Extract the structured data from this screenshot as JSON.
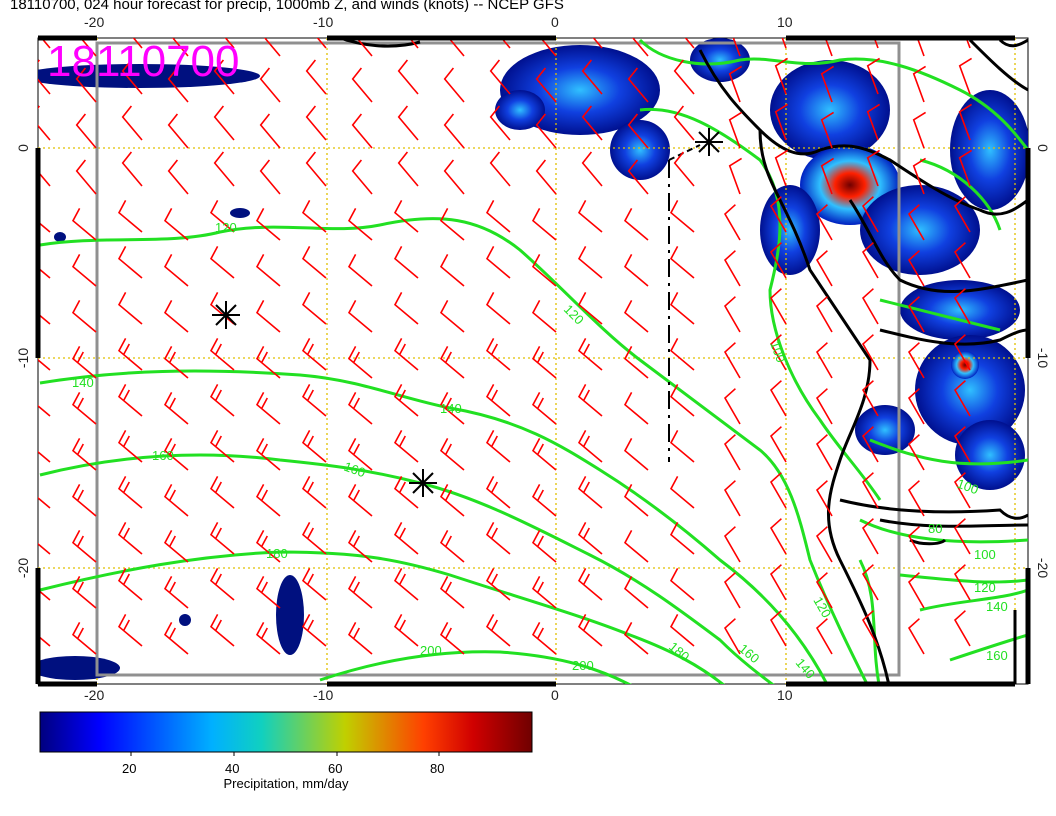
{
  "title": "18110700, 024 hour forecast for precip, 1000mb Z, and winds (knots) -- NCEP GFS",
  "stamp": "18110700",
  "axes": {
    "top_ticks": [
      "-20",
      "-10",
      "0",
      "10"
    ],
    "bottom_ticks": [
      "-20",
      "-10",
      "0",
      "10"
    ],
    "left_ticks": [
      "0",
      "-10",
      "-20"
    ],
    "right_ticks": [
      "0",
      "-10",
      "-20"
    ]
  },
  "contour_labels": [
    "120",
    "120",
    "140",
    "140",
    "160",
    "160",
    "180",
    "200",
    "120",
    "140",
    "160",
    "180",
    "200",
    "100",
    "100",
    "100",
    "120",
    "140",
    "160",
    "80"
  ],
  "colorbar": {
    "ticks": [
      "20",
      "40",
      "60",
      "80"
    ],
    "title": "Precipitation, mm/day"
  },
  "colors": {
    "wind_barbs": "#ff0000",
    "contours": "#22e022",
    "coast": "#000000",
    "stamp": "#ff00ff",
    "grid": "#e0c000"
  },
  "icons": [
    "asterisk-marker",
    "asterisk-marker",
    "asterisk-marker"
  ]
}
